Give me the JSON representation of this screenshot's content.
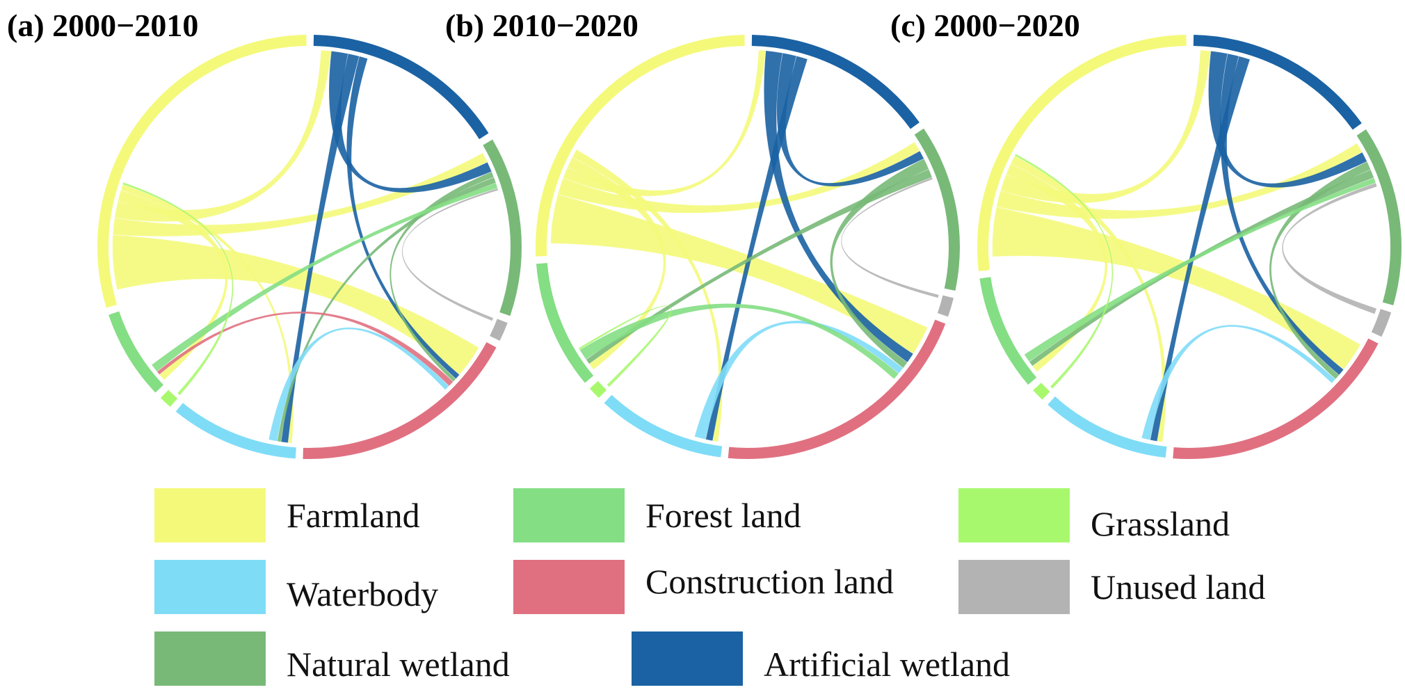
{
  "colors": {
    "Farmland": "#f4f97a",
    "Forest land": "#84de84",
    "Grassland": "#a8f86e",
    "Waterbody": "#7fdcf7",
    "Construction land": "#e07080",
    "Unused land": "#b3b3b3",
    "Natural wetland": "#78b978",
    "Artificial wetland": "#1a62a3"
  },
  "legend": {
    "items": [
      {
        "label": "Farmland",
        "key": "Farmland"
      },
      {
        "label": "Forest land",
        "key": "Forest land"
      },
      {
        "label": "Grassland",
        "key": "Grassland"
      },
      {
        "label": "Waterbody",
        "key": "Waterbody"
      },
      {
        "label": "Construction land",
        "key": "Construction land"
      },
      {
        "label": "Unused land",
        "key": "Unused land"
      },
      {
        "label": "Natural wetland",
        "key": "Natural wetland"
      },
      {
        "label": "Artificial wetland",
        "key": "Artificial wetland"
      }
    ]
  },
  "chart_data": [
    {
      "type": "chord",
      "title": "(a) 2000−2010",
      "segment_order": [
        "Artificial wetland",
        "Natural wetland",
        "Unused land",
        "Construction land",
        "Waterbody",
        "Grassland",
        "Forest land",
        "Farmland"
      ],
      "segment_share": {
        "Artificial wetland": 16,
        "Natural wetland": 14,
        "Unused land": 1.5,
        "Construction land": 18,
        "Waterbody": 10,
        "Grassland": 1,
        "Forest land": 7,
        "Farmland": 30
      },
      "flows": [
        {
          "from": "Farmland",
          "to": "Construction land",
          "value": 10
        },
        {
          "from": "Farmland",
          "to": "Natural wetland",
          "value": 3
        },
        {
          "from": "Farmland",
          "to": "Artificial wetland",
          "value": 3
        },
        {
          "from": "Farmland",
          "to": "Forest land",
          "value": 2
        },
        {
          "from": "Farmland",
          "to": "Waterbody",
          "value": 1
        },
        {
          "from": "Artificial wetland",
          "to": "Natural wetland",
          "value": 3
        },
        {
          "from": "Artificial wetland",
          "to": "Waterbody",
          "value": 2
        },
        {
          "from": "Artificial wetland",
          "to": "Construction land",
          "value": 1.5
        },
        {
          "from": "Natural wetland",
          "to": "Construction land",
          "value": 1
        },
        {
          "from": "Natural wetland",
          "to": "Waterbody",
          "value": 1
        },
        {
          "from": "Construction land",
          "to": "Forest land",
          "value": 1
        },
        {
          "from": "Waterbody",
          "to": "Construction land",
          "value": 1.5
        },
        {
          "from": "Forest land",
          "to": "Natural wetland",
          "value": 1.5
        },
        {
          "from": "Unused land",
          "to": "Natural wetland",
          "value": 0.5
        },
        {
          "from": "Grassland",
          "to": "Farmland",
          "value": 0.5
        }
      ]
    },
    {
      "type": "chord",
      "title": "(b) 2010−2020",
      "segment_order": [
        "Artificial wetland",
        "Natural wetland",
        "Unused land",
        "Construction land",
        "Waterbody",
        "Grassland",
        "Forest land",
        "Farmland"
      ],
      "segment_share": {
        "Artificial wetland": 15,
        "Natural wetland": 13,
        "Unused land": 1.5,
        "Construction land": 21,
        "Waterbody": 10,
        "Grassland": 1,
        "Forest land": 10,
        "Farmland": 26
      },
      "flows": [
        {
          "from": "Farmland",
          "to": "Construction land",
          "value": 9
        },
        {
          "from": "Farmland",
          "to": "Natural wetland",
          "value": 3
        },
        {
          "from": "Farmland",
          "to": "Artificial wetland",
          "value": 2
        },
        {
          "from": "Farmland",
          "to": "Forest land",
          "value": 2
        },
        {
          "from": "Farmland",
          "to": "Waterbody",
          "value": 1.5
        },
        {
          "from": "Artificial wetland",
          "to": "Construction land",
          "value": 3
        },
        {
          "from": "Artificial wetland",
          "to": "Natural wetland",
          "value": 2.5
        },
        {
          "from": "Artificial wetland",
          "to": "Waterbody",
          "value": 2
        },
        {
          "from": "Natural wetland",
          "to": "Construction land",
          "value": 2
        },
        {
          "from": "Natural wetland",
          "to": "Forest land",
          "value": 1.5
        },
        {
          "from": "Waterbody",
          "to": "Construction land",
          "value": 2
        },
        {
          "from": "Forest land",
          "to": "Construction land",
          "value": 2
        },
        {
          "from": "Unused land",
          "to": "Natural wetland",
          "value": 0.5
        },
        {
          "from": "Grassland",
          "to": "Forest land",
          "value": 0.5
        }
      ]
    },
    {
      "type": "chord",
      "title": "(c) 2000−2020",
      "segment_order": [
        "Artificial wetland",
        "Natural wetland",
        "Unused land",
        "Construction land",
        "Waterbody",
        "Grassland",
        "Forest land",
        "Farmland"
      ],
      "segment_share": {
        "Artificial wetland": 15,
        "Natural wetland": 14,
        "Unused land": 2,
        "Construction land": 19,
        "Waterbody": 10,
        "Grassland": 1,
        "Forest land": 9,
        "Farmland": 27
      },
      "flows": [
        {
          "from": "Farmland",
          "to": "Construction land",
          "value": 9
        },
        {
          "from": "Farmland",
          "to": "Natural wetland",
          "value": 3
        },
        {
          "from": "Farmland",
          "to": "Artificial wetland",
          "value": 3
        },
        {
          "from": "Farmland",
          "to": "Forest land",
          "value": 2
        },
        {
          "from": "Farmland",
          "to": "Waterbody",
          "value": 1.5
        },
        {
          "from": "Artificial wetland",
          "to": "Natural wetland",
          "value": 3
        },
        {
          "from": "Artificial wetland",
          "to": "Construction land",
          "value": 2
        },
        {
          "from": "Artificial wetland",
          "to": "Waterbody",
          "value": 2
        },
        {
          "from": "Natural wetland",
          "to": "Construction land",
          "value": 1.5
        },
        {
          "from": "Natural wetland",
          "to": "Forest land",
          "value": 1.5
        },
        {
          "from": "Waterbody",
          "to": "Construction land",
          "value": 1.5
        },
        {
          "from": "Forest land",
          "to": "Natural wetland",
          "value": 1.5
        },
        {
          "from": "Unused land",
          "to": "Natural wetland",
          "value": 1
        },
        {
          "from": "Grassland",
          "to": "Farmland",
          "value": 0.5
        }
      ]
    }
  ]
}
